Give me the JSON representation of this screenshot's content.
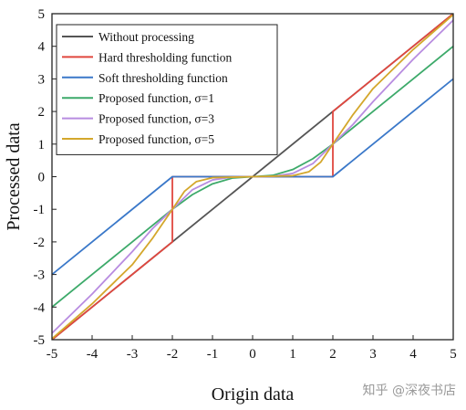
{
  "chart_data": {
    "type": "line",
    "xlabel": "Origin data",
    "ylabel": "Processed data",
    "xlim": [
      -5,
      5
    ],
    "ylim": [
      -5,
      5
    ],
    "xticks": [
      -5,
      -4,
      -3,
      -2,
      -1,
      0,
      1,
      2,
      3,
      4,
      5
    ],
    "yticks": [
      -5,
      -4,
      -3,
      -2,
      -1,
      0,
      1,
      2,
      3,
      4,
      5
    ],
    "legend_position": "top-left",
    "grid": false,
    "series": [
      {
        "name": "Without processing",
        "color": "#555555",
        "points": [
          [
            -5,
            -5
          ],
          [
            5,
            5
          ]
        ]
      },
      {
        "name": "Hard thresholding function",
        "color": "#e0473f",
        "points": [
          [
            -5,
            -5
          ],
          [
            -2,
            -2
          ],
          [
            -2,
            0
          ],
          [
            2,
            0
          ],
          [
            2,
            2
          ],
          [
            5,
            5
          ]
        ]
      },
      {
        "name": "Soft thresholding function",
        "color": "#3a78c9",
        "points": [
          [
            -5,
            -3
          ],
          [
            -2,
            0
          ],
          [
            2,
            0
          ],
          [
            5,
            3
          ]
        ]
      },
      {
        "name": "Proposed function, σ=1",
        "color": "#3daa6a",
        "points": [
          [
            -5,
            -4
          ],
          [
            -4,
            -3
          ],
          [
            -3,
            -2
          ],
          [
            -2,
            -1
          ],
          [
            -1.5,
            -0.55
          ],
          [
            -1,
            -0.22
          ],
          [
            -0.5,
            -0.04
          ],
          [
            0,
            0
          ],
          [
            0.5,
            0.04
          ],
          [
            1,
            0.22
          ],
          [
            1.5,
            0.55
          ],
          [
            2,
            1
          ],
          [
            3,
            2
          ],
          [
            4,
            3
          ],
          [
            5,
            4
          ]
        ]
      },
      {
        "name": "Proposed function, σ=3",
        "color": "#b88ce0",
        "points": [
          [
            -5,
            -4.8
          ],
          [
            -4,
            -3.6
          ],
          [
            -3,
            -2.3
          ],
          [
            -2.5,
            -1.6
          ],
          [
            -2,
            -1
          ],
          [
            -1.5,
            -0.4
          ],
          [
            -1,
            -0.1
          ],
          [
            -0.5,
            -0.01
          ],
          [
            0,
            0
          ],
          [
            0.5,
            0.01
          ],
          [
            1,
            0.1
          ],
          [
            1.5,
            0.4
          ],
          [
            2,
            1
          ],
          [
            2.5,
            1.6
          ],
          [
            3,
            2.3
          ],
          [
            4,
            3.6
          ],
          [
            5,
            4.8
          ]
        ]
      },
      {
        "name": "Proposed function, σ=5",
        "color": "#d4a72c",
        "points": [
          [
            -5,
            -4.97
          ],
          [
            -4,
            -3.9
          ],
          [
            -3,
            -2.7
          ],
          [
            -2.5,
            -1.9
          ],
          [
            -2,
            -1
          ],
          [
            -1.7,
            -0.45
          ],
          [
            -1.4,
            -0.15
          ],
          [
            -1,
            -0.03
          ],
          [
            0,
            0
          ],
          [
            1,
            0.03
          ],
          [
            1.4,
            0.15
          ],
          [
            1.7,
            0.45
          ],
          [
            2,
            1
          ],
          [
            2.5,
            1.9
          ],
          [
            3,
            2.7
          ],
          [
            4,
            3.9
          ],
          [
            5,
            4.97
          ]
        ]
      }
    ]
  },
  "watermark": "知乎 @深夜书店"
}
